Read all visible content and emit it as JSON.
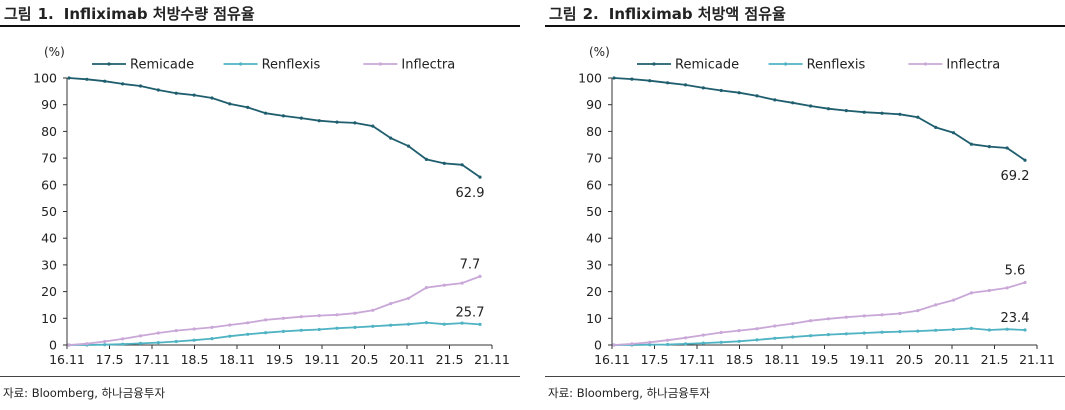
{
  "colors": {
    "remicade": "#1f5e6e",
    "renflexis": "#4fb3c3",
    "inflectra": "#c9a8d8"
  },
  "panels": [
    {
      "title_prefix": "그림",
      "title_number": "1.",
      "title_text": "Infliximab 처방수량 점유율",
      "source": "자료: Bloomberg, 하나금융투자"
    },
    {
      "title_prefix": "그림",
      "title_number": "2.",
      "title_text": "Infliximab 처방액 점유율",
      "source": "자료: Bloomberg, 하나금융투자"
    }
  ],
  "chart_data": [
    {
      "type": "line",
      "title": "Infliximab 처방수량 점유율",
      "ylabel": "(%)",
      "ylim": [
        0,
        100
      ],
      "yticks": [
        "0",
        "10",
        "20",
        "30",
        "40",
        "50",
        "60",
        "70",
        "80",
        "90",
        "100"
      ],
      "xticks": [
        "16.11",
        "17.5",
        "17.11",
        "18.5",
        "18.11",
        "19.5",
        "19.11",
        "20.5",
        "20.11",
        "21.5",
        "21.11"
      ],
      "legend_position": "top",
      "grid": false,
      "end_labels": [
        "62.9",
        "25.7",
        "7.7"
      ],
      "series": [
        {
          "name": "Remicade",
          "color_key": "remicade",
          "values": [
            100,
            99.5,
            98.8,
            97.8,
            97,
            95.5,
            94.3,
            93.6,
            92.5,
            90.3,
            89,
            86.8,
            85.8,
            85,
            84,
            83.5,
            83.2,
            82,
            77.5,
            74.5,
            69.5,
            68,
            67.5,
            62.9
          ]
        },
        {
          "name": "Renflexis",
          "color_key": "renflexis",
          "values": [
            0,
            0,
            0.1,
            0.3,
            0.6,
            0.9,
            1.3,
            1.8,
            2.4,
            3.3,
            4,
            4.6,
            5.1,
            5.5,
            5.8,
            6.3,
            6.6,
            7,
            7.4,
            7.8,
            8.4,
            7.8,
            8.2,
            7.7
          ]
        },
        {
          "name": "Inflectra",
          "color_key": "inflectra",
          "values": [
            0,
            0.5,
            1.3,
            2.3,
            3.4,
            4.5,
            5.4,
            6,
            6.6,
            7.5,
            8.3,
            9.4,
            10,
            10.6,
            11,
            11.3,
            11.9,
            13,
            15.5,
            17.5,
            21.5,
            22.4,
            23.2,
            25.7
          ]
        }
      ]
    },
    {
      "type": "line",
      "title": "Infliximab 처방액 점유율",
      "ylabel": "(%)",
      "ylim": [
        0,
        100
      ],
      "yticks": [
        "0",
        "10",
        "20",
        "30",
        "40",
        "50",
        "60",
        "70",
        "80",
        "90",
        "100"
      ],
      "xticks": [
        "16.11",
        "17.5",
        "17.11",
        "18.5",
        "18.11",
        "19.5",
        "19.11",
        "20.5",
        "20.11",
        "21.5",
        "21.11"
      ],
      "legend_position": "top",
      "grid": false,
      "end_labels": [
        "69.2",
        "23.4",
        "5.6"
      ],
      "series": [
        {
          "name": "Remicade",
          "color_key": "remicade",
          "values": [
            100,
            99.6,
            99,
            98.2,
            97.4,
            96.3,
            95.3,
            94.5,
            93.3,
            91.8,
            90.7,
            89.5,
            88.5,
            87.8,
            87.2,
            86.8,
            86.4,
            85.3,
            81.5,
            79.5,
            75.2,
            74.3,
            73.8,
            69.2
          ]
        },
        {
          "name": "Renflexis",
          "color_key": "renflexis",
          "values": [
            0,
            0,
            0.1,
            0.2,
            0.4,
            0.7,
            1,
            1.4,
            1.9,
            2.5,
            3,
            3.5,
            3.9,
            4.2,
            4.5,
            4.8,
            5,
            5.2,
            5.5,
            5.8,
            6.2,
            5.6,
            5.9,
            5.6
          ]
        },
        {
          "name": "Inflectra",
          "color_key": "inflectra",
          "values": [
            0,
            0.4,
            1,
            1.8,
            2.7,
            3.7,
            4.7,
            5.4,
            6.1,
            7.1,
            8,
            9.1,
            9.8,
            10.4,
            10.9,
            11.3,
            11.8,
            12.9,
            15,
            16.8,
            19.5,
            20.4,
            21.4,
            23.4
          ]
        }
      ]
    }
  ]
}
